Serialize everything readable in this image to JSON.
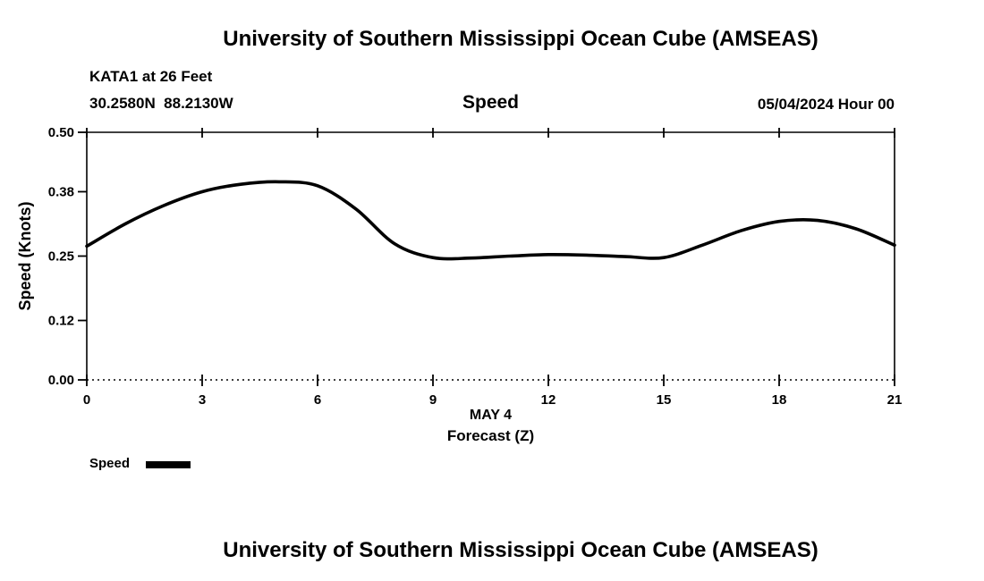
{
  "page": {
    "top_title": "University of Southern Mississippi Ocean Cube (AMSEAS)",
    "bottom_title": "University of Southern Mississippi Ocean Cube (AMSEAS)"
  },
  "header": {
    "station": "KATA1 at 26 Feet",
    "coordinates": "30.2580N  88.2130W",
    "plot_title": "Speed",
    "datetime": "05/04/2024 Hour 00"
  },
  "legend": {
    "label": "Speed"
  },
  "chart_data": {
    "type": "line",
    "title": "Speed",
    "xlabel_line1": "MAY 4",
    "xlabel_line2": "Forecast (Z)",
    "ylabel": "Speed (Knots)",
    "xlim": [
      0,
      21
    ],
    "ylim": [
      0.0,
      0.5
    ],
    "xticks": [
      0,
      3,
      6,
      9,
      12,
      15,
      18,
      21
    ],
    "xtick_labels": [
      "0",
      "3",
      "6",
      "9",
      "12",
      "15",
      "18",
      "21"
    ],
    "yticks": [
      0.0,
      0.12,
      0.25,
      0.38,
      0.5
    ],
    "ytick_labels": [
      "0.00",
      "0.12",
      "0.25",
      "0.38",
      "0.50"
    ],
    "grid": false,
    "legend_position": "bottom-left",
    "line_color": "#000000",
    "x": [
      0,
      1,
      2,
      3,
      4,
      5,
      6,
      7,
      8,
      9,
      10,
      11,
      12,
      13,
      14,
      15,
      16,
      17,
      18,
      19,
      20,
      21
    ],
    "series": [
      {
        "name": "Speed",
        "values": [
          0.27,
          0.315,
          0.352,
          0.38,
          0.395,
          0.4,
          0.392,
          0.345,
          0.275,
          0.247,
          0.246,
          0.25,
          0.253,
          0.252,
          0.249,
          0.247,
          0.272,
          0.301,
          0.32,
          0.322,
          0.305,
          0.272
        ]
      }
    ]
  }
}
